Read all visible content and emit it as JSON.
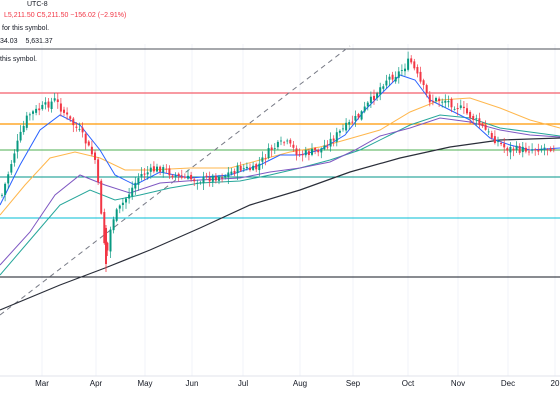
{
  "legend": {
    "timezone": "UTC-8",
    "ohlc": "L5,211.50  C5,211.50  −156.02 (−2.91%)",
    "no_data_note_1": "for this symbol.",
    "indicator_partial": "34.03",
    "indicator_value": "5,631.37",
    "no_data_note_2": "this symbol."
  },
  "colors": {
    "bull": "#089981",
    "bear": "#f23645",
    "red_line": "#f23645",
    "orange_line": "#ff9800",
    "green_line": "#4caf50",
    "teal_line": "#009688",
    "cyan_line": "#00bcd4",
    "black_line": "#131722",
    "ma_black": "#2a2e39",
    "ma_orange": "#ffb74d",
    "ma_teal": "#26a69a",
    "ma_purple": "#7e57c2",
    "ma_blue": "#2962ff"
  },
  "chart_data": {
    "type": "candlestick",
    "x_ticks": [
      "Mar",
      "Apr",
      "May",
      "Jun",
      "Jul",
      "Aug",
      "Sep",
      "Oct",
      "Nov",
      "Dec",
      "20"
    ],
    "horizontal_levels": [
      "red",
      "orange",
      "green",
      "teal",
      "cyan",
      "black"
    ],
    "trendline": "dashed",
    "moving_averages": [
      "black",
      "orange",
      "teal",
      "purple",
      "blue"
    ]
  }
}
